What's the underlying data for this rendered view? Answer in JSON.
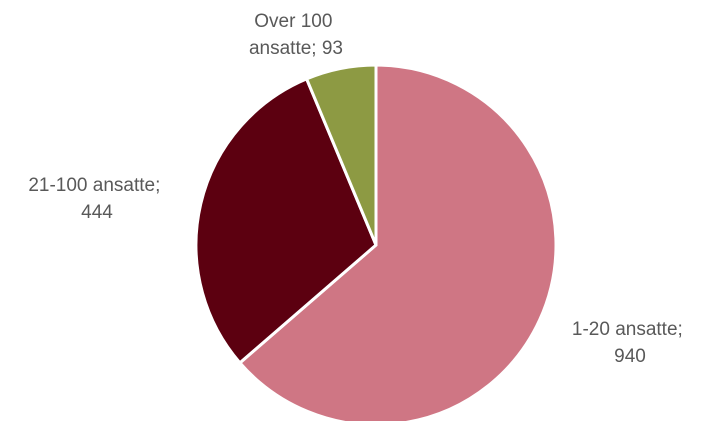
{
  "chart_data": {
    "type": "pie",
    "title": "",
    "start_angle_deg": 0,
    "direction": "clockwise",
    "slices": [
      {
        "label": "1-20 ansatte",
        "value": 940,
        "color": "#CF7684",
        "label_lines": [
          "1-20 ansatte;",
          "940"
        ]
      },
      {
        "label": "21-100 ansatte",
        "value": 444,
        "color": "#5C0010",
        "label_lines": [
          "21-100 ansatte;",
          "444"
        ]
      },
      {
        "label": "Over 100 ansatte",
        "value": 93,
        "color": "#8D9A43",
        "label_lines": [
          "Over 100",
          "ansatte; 93"
        ]
      }
    ],
    "slice_border_color": "#ffffff",
    "label_color": "#595959"
  }
}
